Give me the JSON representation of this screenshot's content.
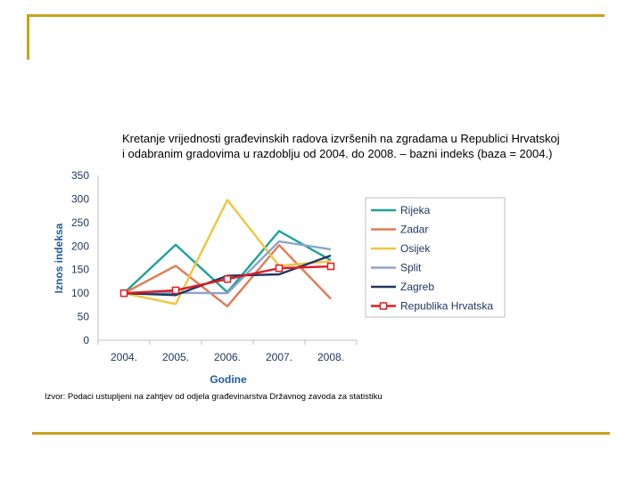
{
  "chart_data": {
    "type": "line",
    "title_lines": [
      "Kretanje vrijednosti građevinskih radova izvršenih na zgradama u Republici Hrvatskoj",
      "i odabranim gradovima u razdoblju od 2004. do 2008.  – bazni indeks (baza = 2004.)"
    ],
    "categories": [
      "2004.",
      "2005.",
      "2006.",
      "2007.",
      "2008."
    ],
    "xlabel": "Godine",
    "ylabel": "Iznos indeksa",
    "ylim": [
      0,
      350
    ],
    "yticks": [
      0,
      50,
      100,
      150,
      200,
      250,
      300,
      350
    ],
    "grid": false,
    "legend_position": "right",
    "series": [
      {
        "name": "Rijeka",
        "color": "#1aa39a",
        "marker": "none",
        "values": [
          100,
          203,
          102,
          232,
          170
        ]
      },
      {
        "name": "Zadar",
        "color": "#e07b53",
        "marker": "none",
        "values": [
          100,
          158,
          72,
          202,
          88
        ]
      },
      {
        "name": "Osijek",
        "color": "#f2c53d",
        "marker": "none",
        "values": [
          100,
          77,
          298,
          158,
          168
        ]
      },
      {
        "name": "Split",
        "color": "#8ea3c8",
        "marker": "none",
        "values": [
          100,
          101,
          100,
          210,
          193
        ]
      },
      {
        "name": "Zagreb",
        "color": "#1f3864",
        "marker": "none",
        "values": [
          100,
          96,
          137,
          140,
          180
        ]
      },
      {
        "name": "Republika Hrvatska",
        "color": "#e01b24",
        "marker": "square",
        "values": [
          100,
          106,
          130,
          153,
          157
        ]
      }
    ],
    "source": "Izvor: Podaci ustupljeni na zahtjev od odjela građevinarstva Državnog zavoda za statistiku"
  },
  "colors": {
    "accent_rule": "#c8a21e",
    "axis": "#bfbfbf",
    "tick_text": "#1f3864",
    "axis_label": "#1f5c99"
  }
}
